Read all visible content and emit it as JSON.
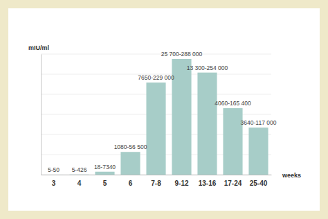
{
  "chart_data": {
    "type": "bar",
    "categories": [
      "3",
      "4",
      "5",
      "6",
      "7-8",
      "9-12",
      "13-16",
      "17-24",
      "25-40"
    ],
    "values": [
      50,
      426,
      7340,
      56500,
      229000,
      288000,
      254000,
      165400,
      117000
    ],
    "value_labels": [
      "5-50",
      "5-426",
      "18-7340",
      "1080-56 500",
      "7650-229 000",
      "25 700-288 000",
      "13 300-254 000",
      "4060-165 400",
      "3640-117 000"
    ],
    "data_labels": true,
    "color": "#a7cdc8",
    "x_label": "weeks",
    "y_label": "mIU/ml",
    "ylim": [
      0,
      300000
    ],
    "yticks": [
      0,
      50000,
      100000,
      150000,
      200000,
      250000,
      300000
    ],
    "grid": true,
    "tick_labels": "x"
  }
}
